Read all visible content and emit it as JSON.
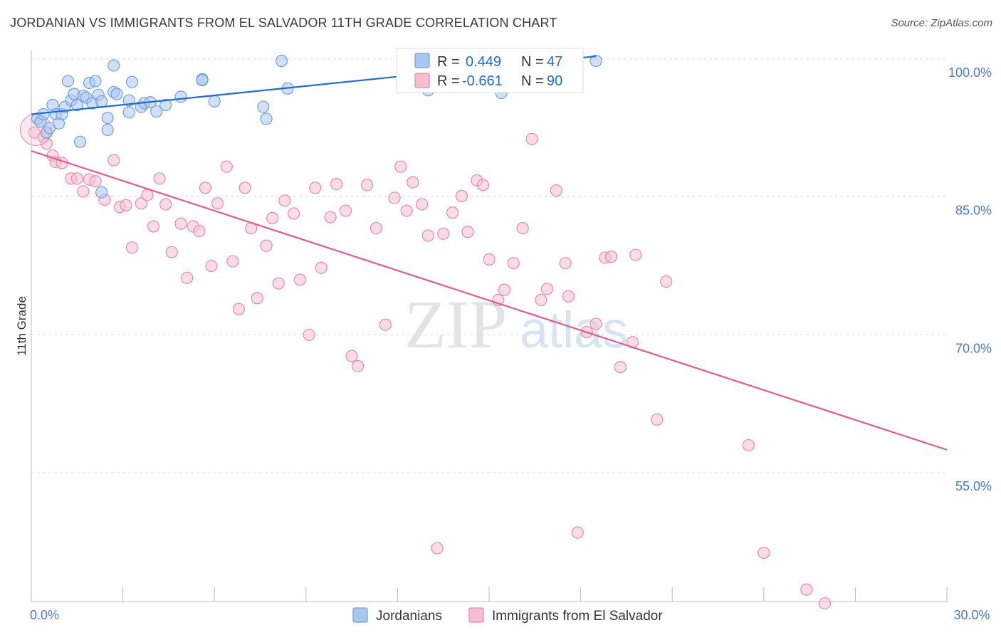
{
  "title": "JORDANIAN VS IMMIGRANTS FROM EL SALVADOR 11TH GRADE CORRELATION CHART",
  "source": "Source: ZipAtlas.com",
  "watermark": {
    "zip": "ZIP",
    "atlas": "atlas"
  },
  "colors": {
    "blue_fill": "#a9c7ee",
    "blue_stroke": "#6f9fdc",
    "blue_line": "#1f6bd0",
    "pink_fill": "#f6bfd1",
    "pink_stroke": "#e889a8",
    "pink_line": "#e05c8e",
    "tick_text": "#4a7ac8",
    "grid": "#dddddd"
  },
  "chart_data": {
    "type": "scatter",
    "ylabel": "11th Grade",
    "xlim": [
      0,
      30
    ],
    "ylim": [
      41.0,
      101.0
    ],
    "x_ticks": [
      0,
      3,
      6,
      9,
      12,
      15,
      18,
      21,
      24,
      27,
      30
    ],
    "x_tick_labels": {
      "0": "0.0%",
      "30": "30.0%"
    },
    "y_ticks": [
      55,
      70,
      85,
      100
    ],
    "y_tick_labels": [
      "55.0%",
      "70.0%",
      "85.0%",
      "100.0%"
    ],
    "grid": "horizontal-dashed",
    "legend": {
      "placement": "top-center",
      "entries": [
        {
          "r_label": "R =",
          "r_value": "0.449",
          "n_label": "N =",
          "n_value": "47"
        },
        {
          "r_label": "R =",
          "r_value": "-0.661",
          "n_label": "N =",
          "n_value": "90"
        }
      ]
    },
    "series": [
      {
        "name": "Jordanians",
        "trend": {
          "x0": 0,
          "y0": 94.0,
          "x1": 18.5,
          "y1": 100.3
        },
        "points": [
          [
            0.2,
            93.5
          ],
          [
            0.3,
            93.2
          ],
          [
            0.4,
            94.0
          ],
          [
            0.5,
            92.0
          ],
          [
            0.6,
            92.5
          ],
          [
            0.7,
            95.0
          ],
          [
            0.8,
            94.0
          ],
          [
            0.9,
            93.0
          ],
          [
            1.0,
            94.0
          ],
          [
            1.1,
            94.8
          ],
          [
            1.2,
            97.6
          ],
          [
            1.3,
            95.5
          ],
          [
            1.4,
            96.2
          ],
          [
            1.5,
            95.0
          ],
          [
            1.6,
            91.0
          ],
          [
            1.7,
            96.0
          ],
          [
            1.8,
            95.8
          ],
          [
            1.9,
            97.4
          ],
          [
            2.0,
            95.2
          ],
          [
            2.1,
            97.6
          ],
          [
            2.2,
            96.1
          ],
          [
            2.3,
            85.5
          ],
          [
            2.3,
            95.4
          ],
          [
            2.5,
            92.3
          ],
          [
            2.5,
            93.6
          ],
          [
            2.7,
            99.3
          ],
          [
            2.7,
            96.4
          ],
          [
            2.8,
            96.2
          ],
          [
            3.2,
            95.5
          ],
          [
            3.2,
            94.2
          ],
          [
            3.3,
            97.5
          ],
          [
            3.6,
            94.8
          ],
          [
            3.7,
            95.2
          ],
          [
            3.9,
            95.3
          ],
          [
            4.1,
            94.3
          ],
          [
            4.4,
            95.0
          ],
          [
            4.9,
            95.9
          ],
          [
            5.6,
            97.8
          ],
          [
            5.6,
            97.7
          ],
          [
            6.0,
            95.4
          ],
          [
            7.6,
            94.8
          ],
          [
            7.7,
            93.5
          ],
          [
            8.2,
            99.8
          ],
          [
            8.4,
            96.8
          ],
          [
            13.0,
            96.6
          ],
          [
            15.4,
            96.3
          ],
          [
            18.5,
            99.8
          ]
        ]
      },
      {
        "name": "Immigrants from El Salvador",
        "trend": {
          "x0": 0,
          "y0": 90.0,
          "x1": 30.0,
          "y1": 57.5
        },
        "points": [
          [
            0.1,
            92.0
          ],
          [
            0.4,
            91.5
          ],
          [
            0.5,
            90.8
          ],
          [
            0.7,
            89.5
          ],
          [
            0.8,
            88.8
          ],
          [
            1.0,
            88.7
          ],
          [
            1.3,
            87.0
          ],
          [
            1.5,
            87.0
          ],
          [
            1.7,
            85.6
          ],
          [
            1.9,
            86.9
          ],
          [
            2.1,
            86.7
          ],
          [
            2.4,
            84.7
          ],
          [
            2.7,
            89.0
          ],
          [
            2.9,
            83.9
          ],
          [
            3.1,
            84.1
          ],
          [
            3.3,
            79.5
          ],
          [
            3.6,
            84.3
          ],
          [
            3.8,
            85.2
          ],
          [
            4.0,
            81.8
          ],
          [
            4.2,
            87.0
          ],
          [
            4.4,
            84.2
          ],
          [
            4.6,
            79.0
          ],
          [
            4.9,
            82.1
          ],
          [
            5.1,
            76.2
          ],
          [
            5.3,
            81.8
          ],
          [
            5.5,
            81.3
          ],
          [
            5.7,
            86.0
          ],
          [
            5.9,
            77.5
          ],
          [
            6.1,
            84.3
          ],
          [
            6.4,
            88.3
          ],
          [
            6.6,
            78.0
          ],
          [
            6.8,
            72.8
          ],
          [
            7.0,
            86.0
          ],
          [
            7.2,
            81.6
          ],
          [
            7.4,
            74.0
          ],
          [
            7.7,
            79.7
          ],
          [
            7.9,
            82.7
          ],
          [
            8.1,
            75.6
          ],
          [
            8.3,
            84.6
          ],
          [
            8.6,
            83.2
          ],
          [
            8.8,
            76.0
          ],
          [
            9.1,
            70.0
          ],
          [
            9.3,
            86.0
          ],
          [
            9.5,
            77.3
          ],
          [
            9.8,
            82.8
          ],
          [
            10.0,
            86.4
          ],
          [
            10.3,
            83.5
          ],
          [
            10.5,
            67.7
          ],
          [
            10.7,
            66.6
          ],
          [
            11.0,
            86.3
          ],
          [
            11.3,
            81.6
          ],
          [
            11.6,
            71.1
          ],
          [
            11.9,
            84.9
          ],
          [
            12.1,
            88.3
          ],
          [
            12.3,
            83.5
          ],
          [
            12.5,
            86.6
          ],
          [
            12.8,
            84.2
          ],
          [
            13.0,
            80.8
          ],
          [
            13.3,
            46.8
          ],
          [
            13.5,
            81.0
          ],
          [
            13.8,
            83.3
          ],
          [
            14.1,
            85.1
          ],
          [
            14.3,
            81.2
          ],
          [
            14.6,
            86.8
          ],
          [
            14.8,
            86.3
          ],
          [
            15.0,
            78.2
          ],
          [
            15.3,
            73.8
          ],
          [
            15.5,
            74.9
          ],
          [
            15.8,
            77.8
          ],
          [
            16.1,
            81.6
          ],
          [
            16.4,
            91.3
          ],
          [
            16.7,
            73.8
          ],
          [
            16.9,
            75.0
          ],
          [
            17.2,
            85.7
          ],
          [
            17.5,
            77.8
          ],
          [
            17.6,
            74.2
          ],
          [
            17.9,
            48.5
          ],
          [
            18.2,
            70.3
          ],
          [
            18.5,
            71.2
          ],
          [
            18.8,
            78.4
          ],
          [
            19.0,
            78.5
          ],
          [
            19.3,
            66.5
          ],
          [
            19.7,
            69.2
          ],
          [
            19.8,
            78.7
          ],
          [
            20.5,
            60.8
          ],
          [
            20.8,
            75.8
          ],
          [
            23.5,
            58.0
          ],
          [
            24.0,
            46.3
          ],
          [
            25.4,
            42.3
          ],
          [
            26.0,
            40.8
          ]
        ]
      }
    ]
  }
}
